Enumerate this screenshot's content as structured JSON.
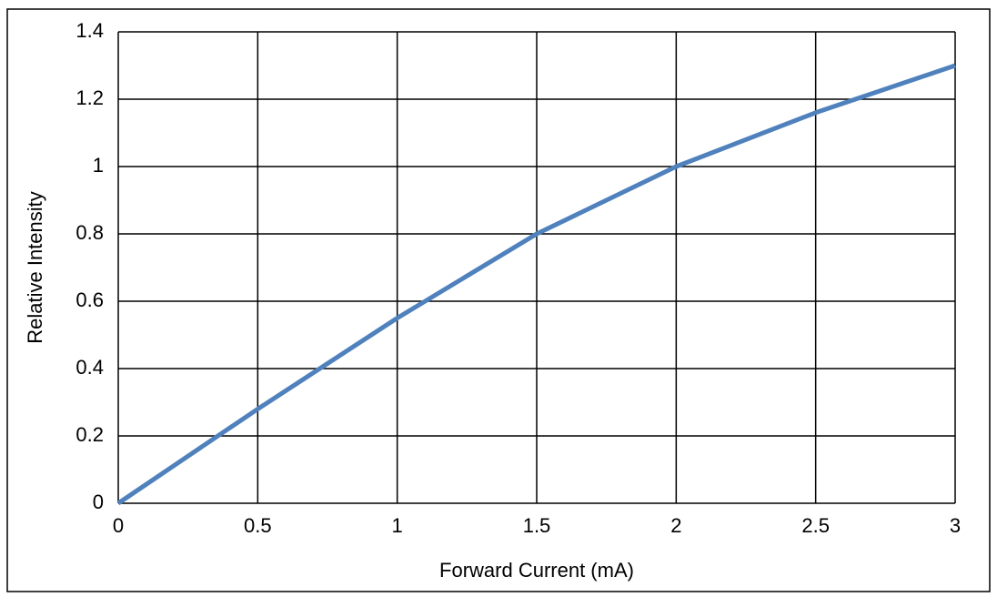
{
  "chart_data": {
    "type": "line",
    "x_label": "Forward Current (mA)",
    "y_label": "Relative Intensity",
    "x": [
      0,
      0.5,
      1,
      1.5,
      2,
      2.5,
      3
    ],
    "values": [
      0,
      0.28,
      0.55,
      0.8,
      1.0,
      1.16,
      1.3
    ],
    "color": "#4f81bd",
    "xlim": [
      0,
      3
    ],
    "xticks": [
      0,
      0.5,
      1,
      1.5,
      2,
      2.5,
      3
    ],
    "ylim": [
      0,
      1.4
    ],
    "yticks": [
      0,
      0.2,
      0.4,
      0.6,
      0.8,
      1,
      1.2,
      1.4
    ],
    "grid": true
  }
}
